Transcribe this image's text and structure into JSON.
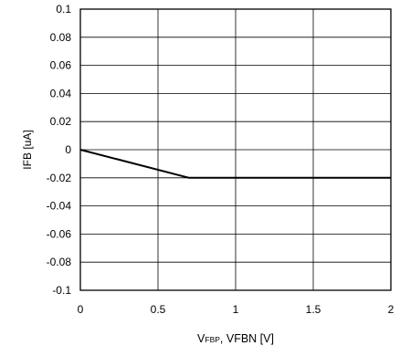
{
  "chart_data": {
    "type": "line",
    "xlabel_main": "V",
    "xlabel_sub": "FBP",
    "xlabel_rest": ", VFBN [V]",
    "ylabel": "IFB [uA]",
    "xlim": [
      0,
      2
    ],
    "ylim": [
      -0.1,
      0.1
    ],
    "grid": true,
    "x_ticks": [
      0,
      0.5,
      1,
      1.5,
      2
    ],
    "x_tick_labels": [
      "0",
      "0.5",
      "1",
      "1.5",
      "2"
    ],
    "y_ticks": [
      0.1,
      0.08,
      0.06,
      0.04,
      0.02,
      0,
      -0.02,
      -0.04,
      -0.06,
      -0.08,
      -0.1
    ],
    "y_tick_labels": [
      "0.1",
      "0.08",
      "0.06",
      "0.04",
      "0.02",
      "0",
      "-0.02",
      "-0.04",
      "-0.06",
      "-0.08",
      "-0.1"
    ],
    "series": [
      {
        "x": [
          0,
          0.7,
          2
        ],
        "y": [
          0,
          -0.02,
          -0.02
        ],
        "color": "#000000"
      }
    ]
  }
}
